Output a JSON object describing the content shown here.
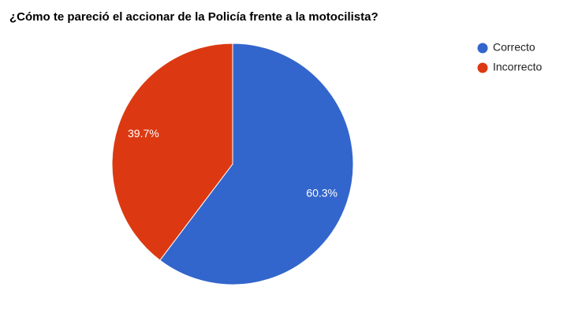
{
  "chart_data": {
    "type": "pie",
    "title": "¿Cómo te pareció el accionar de la Policía frente a la motocilista?",
    "categories": [
      "Correcto",
      "Incorrecto"
    ],
    "values": [
      60.3,
      39.7
    ],
    "value_labels": [
      "60.3%",
      "39.7%"
    ],
    "colors": [
      "#3366cc",
      "#dc3912"
    ],
    "legend": "right"
  }
}
